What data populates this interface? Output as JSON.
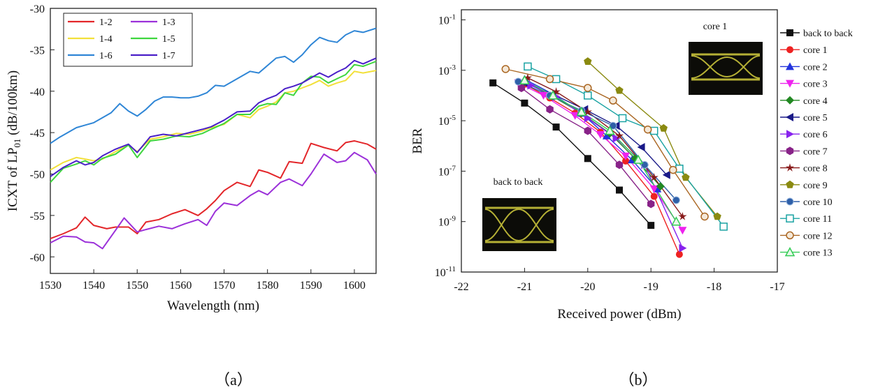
{
  "panels": {
    "a": {
      "label": "（a）"
    },
    "b": {
      "label": "（b）"
    }
  },
  "chart_data": [
    {
      "type": "line",
      "title": "",
      "xlabel": "Wavelength (nm)",
      "ylabel": "ICXT of LP01 (dB/100km)",
      "xlim": [
        1530,
        1605
      ],
      "ylim": [
        -62,
        -30
      ],
      "xticks": [
        "1530",
        "1540",
        "1550",
        "1560",
        "1570",
        "1580",
        "1590",
        "1600"
      ],
      "yticks": [
        "-30",
        "-35",
        "-40",
        "-45",
        "-50",
        "-55",
        "-60"
      ],
      "grid": false,
      "legend_position": "top-left",
      "series": [
        {
          "name": "1-2",
          "color": "#e3262a",
          "x": [
            1530,
            1533,
            1536,
            1538,
            1540,
            1543,
            1545,
            1548,
            1550,
            1552,
            1555,
            1558,
            1561,
            1564,
            1566,
            1568,
            1570,
            1573,
            1576,
            1578,
            1580,
            1583,
            1585,
            1588,
            1590,
            1593,
            1596,
            1598,
            1600,
            1603,
            1605
          ],
          "y": [
            -57.8,
            -57.2,
            -56.5,
            -55.2,
            -56.2,
            -56.6,
            -56.4,
            -56.4,
            -57.2,
            -55.8,
            -55.5,
            -54.8,
            -54.3,
            -55.0,
            -54.2,
            -53.2,
            -52.0,
            -51.0,
            -51.5,
            -49.5,
            -49.8,
            -50.5,
            -48.5,
            -48.7,
            -46.3,
            -46.8,
            -47.2,
            -46.2,
            -46.0,
            -46.4,
            -47.0
          ]
        },
        {
          "name": "1-3",
          "color": "#9b30d9",
          "x": [
            1530,
            1533,
            1536,
            1538,
            1540,
            1542,
            1545,
            1547,
            1550,
            1552,
            1555,
            1558,
            1561,
            1564,
            1566,
            1568,
            1570,
            1573,
            1576,
            1578,
            1580,
            1583,
            1585,
            1588,
            1590,
            1593,
            1596,
            1598,
            1600,
            1603,
            1605
          ],
          "y": [
            -58.3,
            -57.5,
            -57.6,
            -58.2,
            -58.3,
            -59.0,
            -56.8,
            -55.3,
            -57.0,
            -56.7,
            -56.3,
            -56.6,
            -56.0,
            -55.5,
            -56.2,
            -54.5,
            -53.5,
            -53.8,
            -52.6,
            -52.0,
            -52.5,
            -51.0,
            -50.6,
            -51.4,
            -50.0,
            -47.6,
            -48.6,
            -48.4,
            -47.4,
            -48.3,
            -50.0
          ]
        },
        {
          "name": "1-4",
          "color": "#f2e03a",
          "x": [
            1530,
            1533,
            1536,
            1538,
            1540,
            1542,
            1545,
            1548,
            1550,
            1553,
            1556,
            1559,
            1562,
            1565,
            1567,
            1570,
            1573,
            1576,
            1578,
            1580,
            1582,
            1584,
            1586,
            1588,
            1590,
            1592,
            1594,
            1596,
            1598,
            1600,
            1602,
            1605
          ],
          "y": [
            -49.5,
            -48.6,
            -48.0,
            -48.2,
            -48.4,
            -48.2,
            -47.3,
            -46.5,
            -47.3,
            -45.8,
            -45.5,
            -45.1,
            -45.2,
            -44.8,
            -44.4,
            -44.0,
            -42.8,
            -43.2,
            -42.2,
            -41.8,
            -41.3,
            -40.2,
            -40.0,
            -39.6,
            -39.2,
            -38.7,
            -39.4,
            -39.0,
            -38.7,
            -37.6,
            -37.8,
            -37.5
          ]
        },
        {
          "name": "1-5",
          "color": "#3ed63e",
          "x": [
            1530,
            1533,
            1536,
            1538,
            1540,
            1542,
            1545,
            1548,
            1550,
            1553,
            1556,
            1559,
            1562,
            1565,
            1567,
            1570,
            1573,
            1576,
            1578,
            1580,
            1582,
            1584,
            1586,
            1588,
            1590,
            1592,
            1594,
            1596,
            1598,
            1600,
            1602,
            1605
          ],
          "y": [
            -51.0,
            -49.3,
            -48.8,
            -48.4,
            -48.9,
            -48.1,
            -47.6,
            -46.5,
            -48.0,
            -46.0,
            -45.8,
            -45.4,
            -45.5,
            -45.1,
            -44.6,
            -43.9,
            -42.8,
            -42.8,
            -41.8,
            -41.5,
            -41.6,
            -40.2,
            -40.5,
            -39.0,
            -38.2,
            -38.3,
            -39.0,
            -38.5,
            -38.0,
            -36.8,
            -37.0,
            -36.4
          ]
        },
        {
          "name": "1-6",
          "color": "#2f86d6",
          "x": [
            1530,
            1532,
            1534,
            1536,
            1538,
            1540,
            1542,
            1544,
            1546,
            1548,
            1550,
            1552,
            1554,
            1556,
            1558,
            1560,
            1562,
            1564,
            1566,
            1568,
            1570,
            1572,
            1574,
            1576,
            1578,
            1580,
            1582,
            1584,
            1586,
            1588,
            1590,
            1592,
            1594,
            1596,
            1598,
            1600,
            1602,
            1605
          ],
          "y": [
            -46.3,
            -45.6,
            -45.0,
            -44.4,
            -44.1,
            -43.8,
            -43.2,
            -42.6,
            -41.5,
            -42.4,
            -43.0,
            -42.2,
            -41.2,
            -40.7,
            -40.7,
            -40.8,
            -40.8,
            -40.6,
            -40.2,
            -39.3,
            -39.4,
            -38.8,
            -38.2,
            -37.6,
            -37.8,
            -36.9,
            -36.0,
            -35.8,
            -36.5,
            -35.6,
            -34.4,
            -33.5,
            -33.9,
            -34.1,
            -33.2,
            -32.7,
            -32.9,
            -32.4
          ]
        },
        {
          "name": "1-7",
          "color": "#4a1fc8",
          "x": [
            1530,
            1533,
            1536,
            1538,
            1540,
            1542,
            1545,
            1548,
            1550,
            1553,
            1556,
            1559,
            1562,
            1565,
            1567,
            1570,
            1573,
            1576,
            1578,
            1580,
            1582,
            1584,
            1586,
            1588,
            1590,
            1592,
            1594,
            1596,
            1598,
            1600,
            1602,
            1605
          ],
          "y": [
            -50.3,
            -49.2,
            -48.4,
            -48.9,
            -48.6,
            -47.8,
            -47.0,
            -46.4,
            -47.4,
            -45.5,
            -45.2,
            -45.4,
            -45.0,
            -44.6,
            -44.3,
            -43.5,
            -42.5,
            -42.4,
            -41.4,
            -40.9,
            -40.5,
            -39.7,
            -39.4,
            -39.0,
            -38.4,
            -37.8,
            -38.3,
            -37.7,
            -37.2,
            -36.3,
            -36.7,
            -36.0
          ]
        }
      ]
    },
    {
      "type": "scatter",
      "title": "",
      "xlabel": "Received power (dBm)",
      "ylabel": "BER",
      "xlim": [
        -22,
        -17
      ],
      "ylim_log10": [
        -10,
        0
      ],
      "yscale": "log",
      "xticks": [
        "-22",
        "-21",
        "-20",
        "-19",
        "-18",
        "-17"
      ],
      "yticks": [
        {
          "base": "10",
          "exp": "-1",
          "log": -1
        },
        {
          "base": "10",
          "exp": "-3",
          "log": -3
        },
        {
          "base": "10",
          "exp": "-5",
          "log": -5
        },
        {
          "base": "10",
          "exp": "-7",
          "log": -7
        },
        {
          "base": "10",
          "exp": "-9",
          "log": -9
        },
        {
          "base": "10",
          "exp": "-11",
          "log": -11
        }
      ],
      "grid": false,
      "legend_position": "outside-right",
      "annotations": {
        "eye_core1": "core 1",
        "eye_btb": "back to back"
      },
      "series": [
        {
          "name": "back to back",
          "color": "#111111",
          "marker": "square",
          "x": [
            -21.5,
            -21.0,
            -20.5,
            -20.0,
            -19.5,
            -19.0
          ],
          "log_y": [
            -3.5,
            -4.3,
            -5.25,
            -6.5,
            -7.75,
            -9.15
          ]
        },
        {
          "name": "core 1",
          "color": "#ee2222",
          "marker": "circle",
          "x": [
            -21.0,
            -20.6,
            -20.2,
            -19.8,
            -19.4,
            -18.95,
            -18.55
          ],
          "log_y": [
            -3.55,
            -4.1,
            -4.7,
            -5.45,
            -6.6,
            -8.0,
            -10.3
          ]
        },
        {
          "name": "core 2",
          "color": "#2233dd",
          "marker": "triangle-up",
          "x": [
            -21.0,
            -20.55,
            -20.1,
            -19.7,
            -19.3,
            -18.9
          ],
          "log_y": [
            -3.35,
            -3.95,
            -4.7,
            -5.6,
            -6.55,
            -7.7
          ]
        },
        {
          "name": "core 3",
          "color": "#ee22ee",
          "marker": "triangle-down",
          "x": [
            -21.1,
            -20.7,
            -20.2,
            -19.8,
            -19.4,
            -18.95,
            -18.5
          ],
          "log_y": [
            -3.5,
            -4.0,
            -4.8,
            -5.55,
            -6.4,
            -7.7,
            -9.35
          ]
        },
        {
          "name": "core 4",
          "color": "#228822",
          "marker": "diamond",
          "x": [
            -21.0,
            -20.55,
            -20.1,
            -19.65,
            -19.25,
            -18.85
          ],
          "log_y": [
            -3.45,
            -4.05,
            -4.7,
            -5.5,
            -6.5,
            -7.6
          ]
        },
        {
          "name": "core 5",
          "color": "#1a1a88",
          "marker": "triangle-left",
          "x": [
            -21.0,
            -20.55,
            -20.05,
            -19.55,
            -19.15,
            -18.75
          ],
          "log_y": [
            -3.5,
            -3.95,
            -4.55,
            -5.2,
            -6.05,
            -7.15
          ]
        },
        {
          "name": "core 6",
          "color": "#8822ee",
          "marker": "triangle-right",
          "x": [
            -20.9,
            -20.5,
            -20.0,
            -19.55,
            -19.1,
            -18.5
          ],
          "log_y": [
            -3.6,
            -4.05,
            -4.9,
            -5.7,
            -6.75,
            -10.05
          ]
        },
        {
          "name": "core 7",
          "color": "#882288",
          "marker": "hexagon",
          "x": [
            -21.05,
            -20.6,
            -20.0,
            -19.5,
            -19.0
          ],
          "log_y": [
            -3.7,
            -4.55,
            -5.4,
            -6.75,
            -8.3
          ]
        },
        {
          "name": "core 8",
          "color": "#881a1a",
          "marker": "star",
          "x": [
            -20.95,
            -20.5,
            -20.0,
            -19.5,
            -18.95,
            -18.5
          ],
          "log_y": [
            -3.3,
            -3.85,
            -4.65,
            -5.6,
            -7.25,
            -8.8
          ]
        },
        {
          "name": "core 9",
          "color": "#8a8a10",
          "marker": "pentagon",
          "x": [
            -20.0,
            -19.5,
            -18.8,
            -18.45,
            -17.95
          ],
          "log_y": [
            -2.65,
            -3.8,
            -5.3,
            -7.25,
            -8.8
          ]
        },
        {
          "name": "core 10",
          "color": "#2e5fa8",
          "marker": "ball",
          "x": [
            -21.1,
            -20.6,
            -20.1,
            -19.6,
            -19.1,
            -18.6
          ],
          "log_y": [
            -3.45,
            -4.0,
            -4.6,
            -5.2,
            -6.75,
            -8.15
          ]
        },
        {
          "name": "core 11",
          "color": "#1aa3a3",
          "marker": "square-open",
          "x": [
            -20.95,
            -20.5,
            -20.0,
            -19.45,
            -18.95,
            -18.55,
            -17.85
          ],
          "log_y": [
            -2.85,
            -3.35,
            -4.0,
            -4.9,
            -5.4,
            -6.9,
            -9.2
          ]
        },
        {
          "name": "core 12",
          "color": "#aa6622",
          "marker": "circle-open",
          "x": [
            -21.3,
            -20.6,
            -20.0,
            -19.6,
            -19.05,
            -18.65,
            -18.15
          ],
          "log_y": [
            -2.95,
            -3.35,
            -3.7,
            -4.2,
            -5.35,
            -6.95,
            -8.8
          ]
        },
        {
          "name": "core 13",
          "color": "#33cc55",
          "marker": "triangle-open",
          "x": [
            -21.0,
            -20.55,
            -20.1,
            -19.65,
            -19.2,
            -18.6
          ],
          "log_y": [
            -3.4,
            -4.0,
            -4.65,
            -5.4,
            -6.55,
            -9.0
          ]
        }
      ]
    }
  ]
}
